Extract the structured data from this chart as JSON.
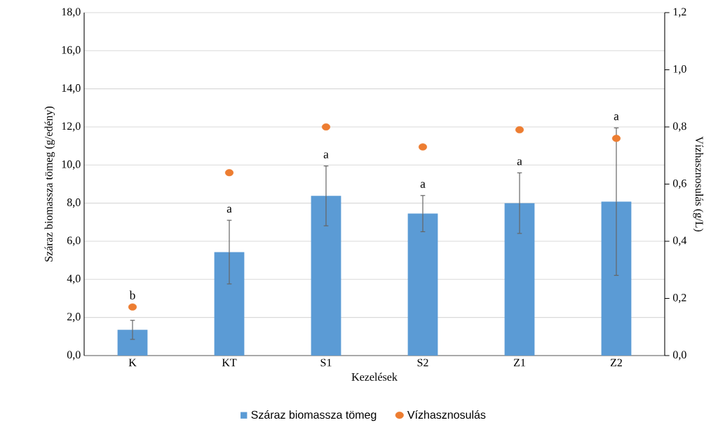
{
  "chart_data": {
    "type": "bar",
    "xlabel": "Kezelések",
    "ylabel": "Száraz biomassza tömeg (g/edény)",
    "y2label": "Vízhasznosulás (g/L)",
    "categories": [
      "K",
      "KT",
      "S1",
      "S2",
      "Z1",
      "Z2"
    ],
    "series": [
      {
        "name": "Száraz biomassza tömeg",
        "color": "#5b9bd5",
        "values": [
          1.35,
          5.43,
          8.38,
          7.45,
          8.0,
          8.08
        ],
        "errors": [
          0.5,
          1.67,
          1.57,
          0.95,
          1.59,
          3.87
        ]
      },
      {
        "name": "Vízhasznosulás",
        "type": "scatter",
        "axis": "y2",
        "marker": "circle",
        "color": "#ed7d31",
        "values": [
          0.17,
          0.64,
          0.8,
          0.73,
          0.79,
          0.76
        ]
      }
    ],
    "ylim": [
      0,
      18
    ],
    "yticks": [
      {
        "value": 0,
        "label": "0,0"
      },
      {
        "value": 2,
        "label": "2,0"
      },
      {
        "value": 4,
        "label": "4,0"
      },
      {
        "value": 6,
        "label": "6,0"
      },
      {
        "value": 8,
        "label": "8,0"
      },
      {
        "value": 10,
        "label": "10,0"
      },
      {
        "value": 12,
        "label": "12,0"
      },
      {
        "value": 14,
        "label": "14,0"
      },
      {
        "value": 16,
        "label": "16,0"
      },
      {
        "value": 18,
        "label": "18,0"
      }
    ],
    "y2lim": [
      0,
      1.2
    ],
    "y2ticks": [
      {
        "value": 0,
        "label": "0,0"
      },
      {
        "value": 0.2,
        "label": "0,2"
      },
      {
        "value": 0.4,
        "label": "0,4"
      },
      {
        "value": 0.6,
        "label": "0,6"
      },
      {
        "value": 0.8,
        "label": "0,8"
      },
      {
        "value": 1.0,
        "label": "1,0"
      },
      {
        "value": 1.2,
        "label": "1,2"
      }
    ],
    "grid": "y",
    "legend": "bottom",
    "annotations": [
      "b",
      "a",
      "a",
      "a",
      "a",
      "a"
    ]
  }
}
